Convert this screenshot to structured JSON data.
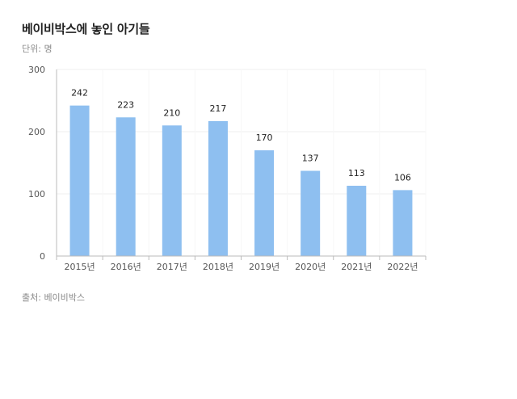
{
  "header": {
    "title": "베이비박스에 놓인 아기들",
    "unit": "단위: 명"
  },
  "footer": {
    "source": "출처: 베이비박스"
  },
  "colors": {
    "bar": "#8ebff0",
    "axis": "#bbbbbb",
    "grid": "#efefef"
  },
  "chart_data": {
    "type": "bar",
    "title": "베이비박스에 놓인 아기들",
    "xlabel": "",
    "ylabel": "",
    "categories": [
      "2015년",
      "2016년",
      "2017년",
      "2018년",
      "2019년",
      "2020년",
      "2021년",
      "2022년"
    ],
    "values": [
      242,
      223,
      210,
      217,
      170,
      137,
      113,
      106
    ],
    "yticks": [
      0,
      100,
      200,
      300
    ],
    "ylim": [
      0,
      300
    ],
    "grid": true,
    "legend": "none"
  }
}
